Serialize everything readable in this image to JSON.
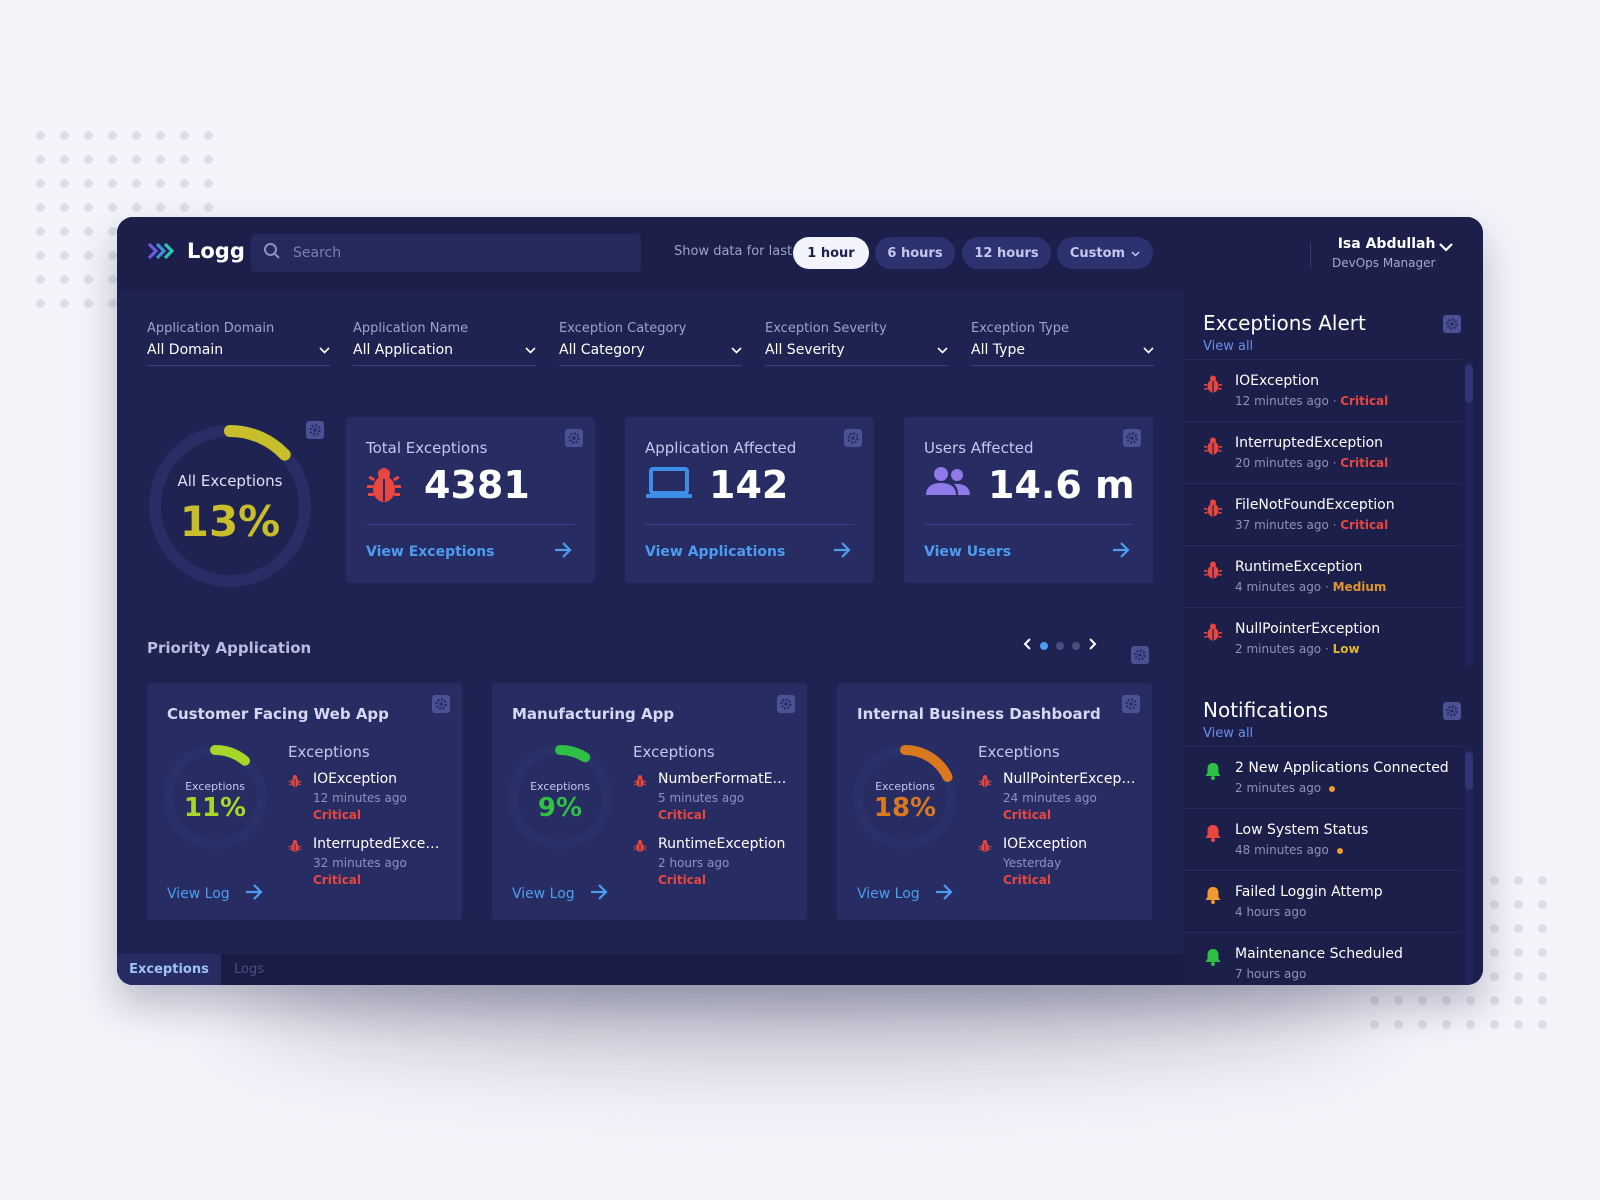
{
  "app": {
    "brand": "Logg",
    "search_placeholder": "Search",
    "range_label": "Show data for last",
    "ranges": [
      "1 hour",
      "6 hours",
      "12 hours",
      "Custom"
    ],
    "user": {
      "name": "Isa Abdullah",
      "role": "DevOps Manager"
    }
  },
  "filters": [
    {
      "label": "Application Domain",
      "value": "All Domain"
    },
    {
      "label": "Application Name",
      "value": "All Application"
    },
    {
      "label": "Exception Category",
      "value": "All Category"
    },
    {
      "label": "Exception Severity",
      "value": "All Severity"
    },
    {
      "label": "Exception Type",
      "value": "All Type"
    }
  ],
  "summary": {
    "all_exceptions": {
      "caption": "All Exceptions",
      "percent": "13%",
      "fraction": 0.13,
      "color": "#c8bd2a"
    },
    "cards": [
      {
        "title": "Total Exceptions",
        "value": "4381",
        "link": "View Exceptions",
        "icon": "bug-icon"
      },
      {
        "title": "Application Affected",
        "value": "142",
        "link": "View Applications",
        "icon": "laptop-icon"
      },
      {
        "title": "Users Affected",
        "value": "14.6 m",
        "link": "View Users",
        "icon": "users-icon"
      }
    ]
  },
  "priority": {
    "title": "Priority Application",
    "apps": [
      {
        "name": "Customer Facing Web App",
        "ring_caption": "Exceptions",
        "percent": "11%",
        "fraction": 0.11,
        "color": "#a7d62b",
        "exceptions_heading": "Exceptions",
        "items": [
          {
            "name": "IOException",
            "time": "12 minutes ago",
            "severity": "Critical"
          },
          {
            "name": "InterruptedException",
            "time": "32 minutes ago",
            "severity": "Critical"
          }
        ],
        "link": "View Log"
      },
      {
        "name": "Manufacturing App",
        "ring_caption": "Exceptions",
        "percent": "9%",
        "fraction": 0.09,
        "color": "#2fbf45",
        "exceptions_heading": "Exceptions",
        "items": [
          {
            "name": "NumberFormatException",
            "time": "5 minutes ago",
            "severity": "Critical"
          },
          {
            "name": "RuntimeException",
            "time": "2 hours ago",
            "severity": "Critical"
          }
        ],
        "link": "View Log"
      },
      {
        "name": "Internal Business Dashboard",
        "ring_caption": "Exceptions",
        "percent": "18%",
        "fraction": 0.18,
        "color": "#d9781f",
        "exceptions_heading": "Exceptions",
        "items": [
          {
            "name": "NullPointerException",
            "time": "24 minutes ago",
            "severity": "Critical"
          },
          {
            "name": "IOException",
            "time": "Yesterday",
            "severity": "Critical"
          }
        ],
        "link": "View Log"
      }
    ]
  },
  "tabs": [
    "Exceptions",
    "Logs"
  ],
  "alerts": {
    "title": "Exceptions Alert",
    "view_all": "View all",
    "items": [
      {
        "name": "IOException",
        "time": "12 minutes ago",
        "severity": "Critical"
      },
      {
        "name": "InterruptedException",
        "time": "20 minutes ago",
        "severity": "Critical"
      },
      {
        "name": "FileNotFoundException",
        "time": "37 minutes ago",
        "severity": "Critical"
      },
      {
        "name": "RuntimeException",
        "time": "4 minutes ago",
        "severity": "Medium"
      },
      {
        "name": "NullPointerException",
        "time": "2 minutes ago",
        "severity": "Low"
      }
    ]
  },
  "notifications": {
    "title": "Notifications",
    "view_all": "View all",
    "items": [
      {
        "title": "2 New Applications Connected",
        "time": "2 minutes ago",
        "icon": "bell-icon",
        "color": "#2fbf45",
        "unread": true
      },
      {
        "title": "Low System Status",
        "time": "48 minutes ago",
        "icon": "bell-icon",
        "color": "#e8473f",
        "unread": true
      },
      {
        "title": "Failed Loggin Attemp",
        "time": "4 hours ago",
        "icon": "bell-icon",
        "color": "#f09a2f",
        "unread": false
      },
      {
        "title": "Maintenance Scheduled",
        "time": "7 hours ago",
        "icon": "bell-icon",
        "color": "#2fbf45",
        "unread": false
      }
    ]
  }
}
